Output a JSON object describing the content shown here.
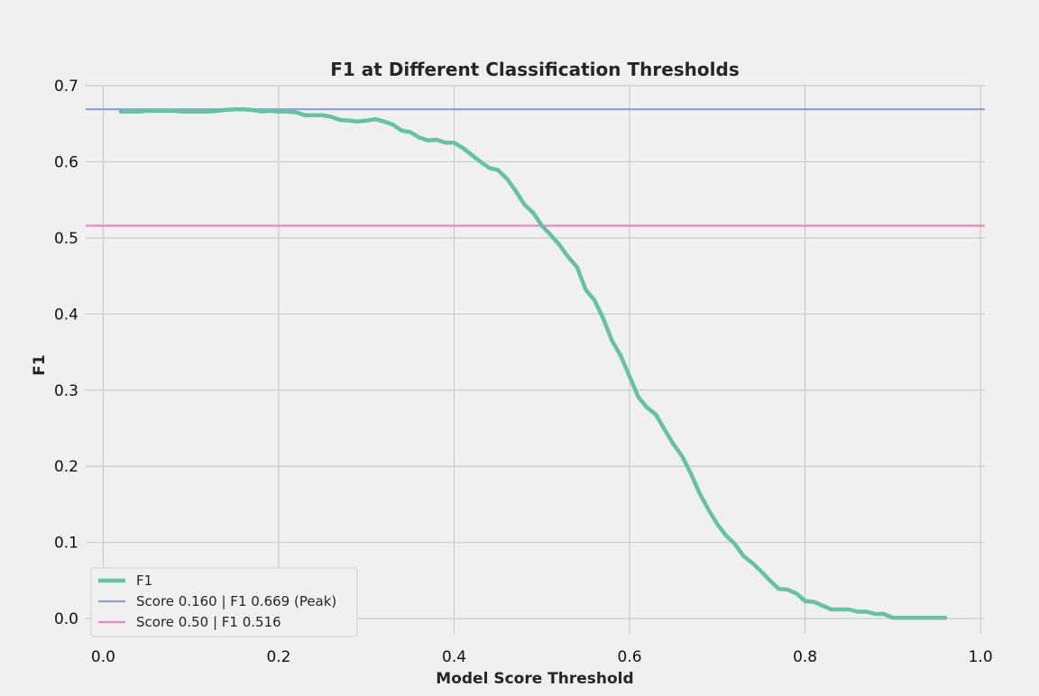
{
  "chart_data": {
    "type": "line",
    "title": "F1 at Different Classification Thresholds",
    "xlabel": "Model Score Threshold",
    "ylabel": "F1",
    "xlim": [
      -0.02,
      1.005
    ],
    "ylim": [
      -0.02,
      0.7
    ],
    "xticks": [
      0.0,
      0.2,
      0.4,
      0.6,
      0.8,
      1.0
    ],
    "xtick_labels": [
      "0.0",
      "0.2",
      "0.4",
      "0.6",
      "0.8",
      "1.0"
    ],
    "yticks": [
      0.0,
      0.1,
      0.2,
      0.3,
      0.4,
      0.5,
      0.6,
      0.7
    ],
    "ytick_labels": [
      "0.0",
      "0.1",
      "0.2",
      "0.3",
      "0.4",
      "0.5",
      "0.6",
      "0.7"
    ],
    "grid": true,
    "legend_position": "lower-left",
    "series": [
      {
        "name": "F1",
        "color": "#66c2a5",
        "x": [
          0.02,
          0.03,
          0.04,
          0.05,
          0.06,
          0.07,
          0.08,
          0.09,
          0.1,
          0.11,
          0.12,
          0.13,
          0.14,
          0.15,
          0.16,
          0.17,
          0.18,
          0.19,
          0.2,
          0.21,
          0.22,
          0.23,
          0.24,
          0.25,
          0.26,
          0.27,
          0.28,
          0.29,
          0.3,
          0.31,
          0.32,
          0.33,
          0.34,
          0.35,
          0.36,
          0.37,
          0.38,
          0.39,
          0.4,
          0.41,
          0.42,
          0.43,
          0.44,
          0.45,
          0.46,
          0.47,
          0.48,
          0.49,
          0.5,
          0.51,
          0.52,
          0.53,
          0.54,
          0.55,
          0.56,
          0.57,
          0.58,
          0.59,
          0.6,
          0.61,
          0.62,
          0.63,
          0.64,
          0.65,
          0.66,
          0.67,
          0.68,
          0.69,
          0.7,
          0.71,
          0.72,
          0.73,
          0.74,
          0.75,
          0.76,
          0.77,
          0.78,
          0.79,
          0.8,
          0.81,
          0.82,
          0.83,
          0.84,
          0.85,
          0.86,
          0.87,
          0.88,
          0.89,
          0.9,
          0.91,
          0.92,
          0.93,
          0.94,
          0.95,
          0.96
        ],
        "y": [
          0.666,
          0.666,
          0.666,
          0.667,
          0.667,
          0.667,
          0.667,
          0.666,
          0.666,
          0.666,
          0.666,
          0.667,
          0.668,
          0.669,
          0.669,
          0.668,
          0.666,
          0.667,
          0.666,
          0.666,
          0.665,
          0.661,
          0.661,
          0.661,
          0.659,
          0.655,
          0.654,
          0.653,
          0.654,
          0.656,
          0.653,
          0.649,
          0.641,
          0.639,
          0.632,
          0.628,
          0.629,
          0.625,
          0.625,
          0.618,
          0.609,
          0.6,
          0.592,
          0.589,
          0.578,
          0.562,
          0.544,
          0.533,
          0.516,
          0.504,
          0.491,
          0.475,
          0.462,
          0.432,
          0.418,
          0.394,
          0.365,
          0.345,
          0.318,
          0.291,
          0.277,
          0.268,
          0.248,
          0.229,
          0.213,
          0.19,
          0.164,
          0.143,
          0.124,
          0.109,
          0.098,
          0.082,
          0.073,
          0.062,
          0.05,
          0.039,
          0.038,
          0.033,
          0.023,
          0.022,
          0.017,
          0.012,
          0.012,
          0.012,
          0.009,
          0.009,
          0.006,
          0.006,
          0.001,
          0.001,
          0.001,
          0.001,
          0.001,
          0.001,
          0.001
        ]
      },
      {
        "name": "Score 0.160 | F1 0.669 (Peak)",
        "color": "#8da0cb",
        "hline": 0.669
      },
      {
        "name": "Score 0.50 | F1 0.516",
        "color": "#e78ac3",
        "hline": 0.516
      }
    ]
  }
}
